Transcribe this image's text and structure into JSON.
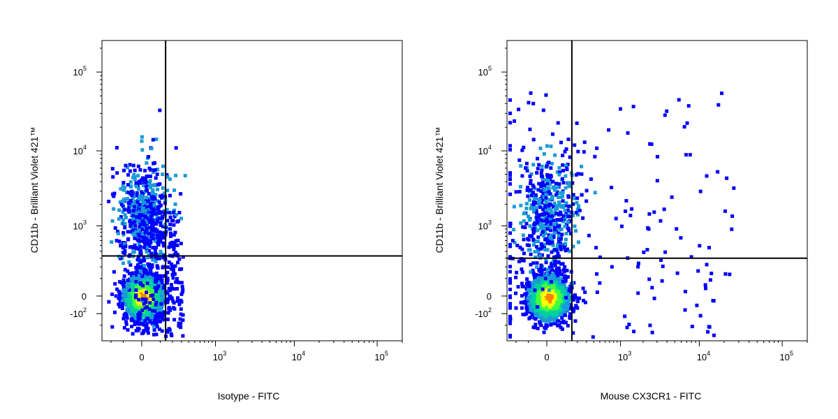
{
  "chart_data": [
    {
      "type": "scatter",
      "title": "",
      "xlabel": "Isotype - FITC",
      "ylabel": "CD11b - Brilliant Violet 421™",
      "scale": "biexponential",
      "xlim": [
        -300,
        200000
      ],
      "ylim": [
        -400,
        250000
      ],
      "x_ticks": [
        {
          "value": 0,
          "base": "0",
          "exp": ""
        },
        {
          "value": 1000,
          "base": "10",
          "exp": "3"
        },
        {
          "value": 10000,
          "base": "10",
          "exp": "4"
        },
        {
          "value": 100000,
          "base": "10",
          "exp": "5"
        }
      ],
      "y_ticks": [
        {
          "value": -100,
          "base": "-10",
          "exp": "2"
        },
        {
          "value": 0,
          "base": "0",
          "exp": ""
        },
        {
          "value": 1000,
          "base": "10",
          "exp": "3"
        },
        {
          "value": 10000,
          "base": "10",
          "exp": "4"
        },
        {
          "value": 100000,
          "base": "10",
          "exp": "5"
        }
      ],
      "gates": {
        "x": 140,
        "y": 330
      },
      "color_scale": [
        "#0000ff",
        "#1a9bd7",
        "#00d0a0",
        "#40ff40",
        "#ffff00",
        "#ff8000",
        "#ff0000"
      ],
      "populations": [
        {
          "x": 0,
          "y": 0,
          "x_spread": 45,
          "y_spread": 45,
          "n": 1800,
          "density": "high"
        },
        {
          "x": 0,
          "y": 1500,
          "x_spread": 60,
          "y_spread": 120,
          "n": 600,
          "density": "medium"
        },
        {
          "x": 80,
          "y": 150,
          "x_spread": 35,
          "y_spread": 90,
          "n": 250,
          "density": "low"
        }
      ],
      "grid": false,
      "legend": "none"
    },
    {
      "type": "scatter",
      "title": "",
      "xlabel": "Mouse CX3CR1 - FITC",
      "ylabel": "CD11b - Brilliant Violet 421™",
      "scale": "biexponential",
      "xlim": [
        -300,
        200000
      ],
      "ylim": [
        -400,
        250000
      ],
      "x_ticks": [
        {
          "value": 0,
          "base": "0",
          "exp": ""
        },
        {
          "value": 1000,
          "base": "10",
          "exp": "3"
        },
        {
          "value": 10000,
          "base": "10",
          "exp": "4"
        },
        {
          "value": 100000,
          "base": "10",
          "exp": "5"
        }
      ],
      "y_ticks": [
        {
          "value": -100,
          "base": "-10",
          "exp": "2"
        },
        {
          "value": 0,
          "base": "0",
          "exp": ""
        },
        {
          "value": 1000,
          "base": "10",
          "exp": "3"
        },
        {
          "value": 10000,
          "base": "10",
          "exp": "4"
        },
        {
          "value": 100000,
          "base": "10",
          "exp": "5"
        }
      ],
      "gates": {
        "x": 150,
        "y": 300
      },
      "color_scale": [
        "#0000ff",
        "#1a9bd7",
        "#00d0a0",
        "#40ff40",
        "#ffff00",
        "#ff8000",
        "#ff0000"
      ],
      "populations": [
        {
          "x": 0,
          "y": 0,
          "x_spread": 45,
          "y_spread": 45,
          "n": 1800,
          "density": "high"
        },
        {
          "x": 0,
          "y": 1500,
          "x_spread": 60,
          "y_spread": 120,
          "n": 500,
          "density": "medium"
        },
        {
          "x": 400,
          "y": 5000,
          "x_spread": 200,
          "y_spread": 120,
          "n": 120,
          "density": "low"
        },
        {
          "x": 400,
          "y": 0,
          "x_spread": 200,
          "y_spread": 60,
          "n": 90,
          "density": "low"
        }
      ],
      "grid": false,
      "legend": "none"
    }
  ]
}
